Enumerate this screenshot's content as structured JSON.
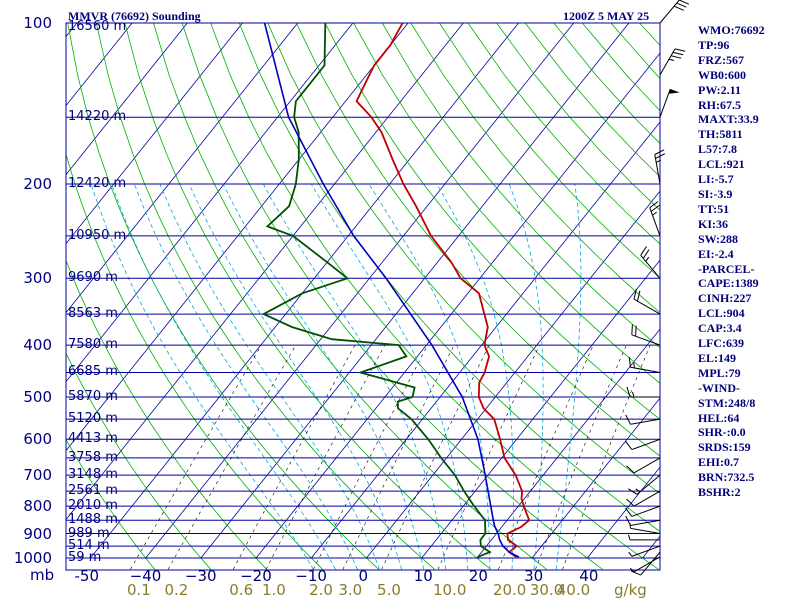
{
  "header": {
    "title": "MMVR (76692) Sounding",
    "timestamp": "1200Z  5 MAY 25"
  },
  "indices": [
    "WMO:76692",
    "TP:96",
    "FRZ:567",
    "WB0:600",
    "PW:2.11",
    "RH:67.5",
    "MAXT:33.9",
    "TH:5811",
    "L57:7.8",
    "LCL:921",
    "LI:-5.7",
    "SI:-3.9",
    "TT:51",
    "KI:36",
    "SW:288",
    "EI:-2.4",
    "-PARCEL-",
    "CAPE:1389",
    "CINH:227",
    "LCL:904",
    "CAP:3.4",
    "LFC:639",
    "EL:149",
    "MPL:79",
    "-WIND-",
    "STM:248/8",
    "HEL:64",
    "SHR-:0.0",
    "SRDS:159",
    "EHI:0.7",
    "BRN:732.5",
    "BSHR:2"
  ],
  "colors": {
    "isobar": "#0000a0",
    "isotherm": "#0000a0",
    "dry_adiabat": "#00b000",
    "moist_adiabat": "#00a8d8",
    "mixing_ratio": "#000000",
    "temperature": "#c00000",
    "dewpoint": "#005000",
    "parcel": "#0000c0",
    "wind_barb": "#000000"
  },
  "chart_data": {
    "type": "skew-t",
    "pressure_unit_label": "mb",
    "mixing_ratio_unit_label": "g/kg",
    "pressure_levels": [
      {
        "p": 100,
        "label": "100",
        "height": "16560 m"
      },
      {
        "p": 150,
        "label": "",
        "height": "14220 m"
      },
      {
        "p": 200,
        "label": "200",
        "height": "12420 m"
      },
      {
        "p": 250,
        "label": "",
        "height": "10950 m"
      },
      {
        "p": 300,
        "label": "300",
        "height": "9690 m"
      },
      {
        "p": 350,
        "label": "",
        "height": "8563 m"
      },
      {
        "p": 400,
        "label": "400",
        "height": "7580 m"
      },
      {
        "p": 450,
        "label": "",
        "height": "6685 m"
      },
      {
        "p": 500,
        "label": "500",
        "height": "5870 m"
      },
      {
        "p": 550,
        "label": "",
        "height": "5120 m"
      },
      {
        "p": 600,
        "label": "600",
        "height": "4413 m"
      },
      {
        "p": 650,
        "label": "",
        "height": "3758 m"
      },
      {
        "p": 700,
        "label": "700",
        "height": "3148 m"
      },
      {
        "p": 750,
        "label": "",
        "height": "2561 m"
      },
      {
        "p": 800,
        "label": "800",
        "height": "2010 m"
      },
      {
        "p": 850,
        "label": "",
        "height": "1488 m"
      },
      {
        "p": 900,
        "label": "900",
        "height": "989 m"
      },
      {
        "p": 950,
        "label": "",
        "height": "514 m"
      },
      {
        "p": 1000,
        "label": "1000",
        "height": "59 m"
      }
    ],
    "temperature_ticks": [
      -50,
      -40,
      -30,
      -20,
      -10,
      0,
      10,
      20,
      30,
      40
    ],
    "temperature_tick_labels": [
      "-50",
      "−40",
      "−30",
      "−20",
      "−10",
      "0",
      "10",
      "20",
      "30",
      "40"
    ],
    "mixing_ratio_ticks": [
      0.1,
      0.2,
      0.6,
      1.0,
      2.0,
      3.0,
      5.0,
      10.0,
      20.0,
      30.0,
      40.0
    ],
    "mixing_ratio_tick_labels": [
      "0.1",
      "0.2",
      "0.6",
      "1.0",
      "2.0",
      "3.0",
      "5.0",
      "10.0",
      "20.0",
      "30.0",
      "40.0"
    ],
    "series": [
      {
        "key": "temperature",
        "points": [
          [
            996,
            27
          ],
          [
            975,
            25
          ],
          [
            950,
            25.5
          ],
          [
            925,
            23
          ],
          [
            900,
            22
          ],
          [
            875,
            23.5
          ],
          [
            850,
            24
          ],
          [
            825,
            22.5
          ],
          [
            800,
            21
          ],
          [
            775,
            19.5
          ],
          [
            750,
            18.5
          ],
          [
            700,
            15
          ],
          [
            650,
            10.5
          ],
          [
            600,
            7
          ],
          [
            550,
            3
          ],
          [
            525,
            -0.5
          ],
          [
            500,
            -3
          ],
          [
            470,
            -5
          ],
          [
            450,
            -5.5
          ],
          [
            420,
            -7
          ],
          [
            400,
            -9.5
          ],
          [
            370,
            -11.5
          ],
          [
            350,
            -14
          ],
          [
            320,
            -18
          ],
          [
            300,
            -23.5
          ],
          [
            280,
            -27.5
          ],
          [
            250,
            -35
          ],
          [
            220,
            -42
          ],
          [
            200,
            -47.5
          ],
          [
            180,
            -53
          ],
          [
            160,
            -59
          ],
          [
            150,
            -63
          ],
          [
            140,
            -68
          ],
          [
            130,
            -69
          ],
          [
            120,
            -70
          ],
          [
            110,
            -70
          ],
          [
            100,
            -71
          ]
        ]
      },
      {
        "key": "dewpoint",
        "points": [
          [
            996,
            20
          ],
          [
            975,
            21.5
          ],
          [
            950,
            19
          ],
          [
            925,
            18
          ],
          [
            900,
            18
          ],
          [
            875,
            17
          ],
          [
            850,
            16
          ],
          [
            800,
            12
          ],
          [
            750,
            8
          ],
          [
            700,
            4
          ],
          [
            650,
            -1
          ],
          [
            600,
            -6
          ],
          [
            550,
            -12
          ],
          [
            525,
            -16
          ],
          [
            510,
            -17
          ],
          [
            500,
            -15
          ],
          [
            480,
            -16
          ],
          [
            450,
            -28
          ],
          [
            420,
            -22
          ],
          [
            400,
            -25
          ],
          [
            390,
            -38
          ],
          [
            370,
            -47
          ],
          [
            350,
            -54
          ],
          [
            320,
            -50
          ],
          [
            300,
            -44
          ],
          [
            280,
            -50
          ],
          [
            250,
            -60
          ],
          [
            240,
            -66
          ],
          [
            220,
            -65
          ],
          [
            200,
            -67
          ],
          [
            180,
            -70
          ],
          [
            160,
            -74
          ],
          [
            150,
            -77
          ],
          [
            140,
            -79
          ],
          [
            120,
            -79
          ],
          [
            100,
            -85
          ]
        ]
      },
      {
        "key": "parcel",
        "points": [
          [
            996,
            27.5
          ],
          [
            975,
            25
          ],
          [
            950,
            23
          ],
          [
            925,
            21.5
          ],
          [
            904,
            20.5
          ],
          [
            870,
            18.5
          ],
          [
            850,
            17.5
          ],
          [
            800,
            15
          ],
          [
            700,
            9.5
          ],
          [
            600,
            3
          ],
          [
            500,
            -6
          ],
          [
            400,
            -19
          ],
          [
            300,
            -37
          ],
          [
            250,
            -49
          ],
          [
            200,
            -62
          ],
          [
            150,
            -78
          ],
          [
            100,
            -96
          ]
        ]
      }
    ],
    "wind_barbs": [
      {
        "p": 995,
        "dir": 240,
        "spd": 5
      },
      {
        "p": 975,
        "dir": 220,
        "spd": 10
      },
      {
        "p": 950,
        "dir": 250,
        "spd": 5
      },
      {
        "p": 925,
        "dir": 270,
        "spd": 5
      },
      {
        "p": 900,
        "dir": 280,
        "spd": 5
      },
      {
        "p": 850,
        "dir": 260,
        "spd": 10
      },
      {
        "p": 800,
        "dir": 250,
        "spd": 10
      },
      {
        "p": 750,
        "dir": 240,
        "spd": 10
      },
      {
        "p": 700,
        "dir": 230,
        "spd": 15
      },
      {
        "p": 650,
        "dir": 240,
        "spd": 10
      },
      {
        "p": 600,
        "dir": 250,
        "spd": 10
      },
      {
        "p": 550,
        "dir": 260,
        "spd": 10
      },
      {
        "p": 500,
        "dir": 270,
        "spd": 15
      },
      {
        "p": 450,
        "dir": 280,
        "spd": 15
      },
      {
        "p": 400,
        "dir": 290,
        "spd": 20
      },
      {
        "p": 350,
        "dir": 300,
        "spd": 20
      },
      {
        "p": 300,
        "dir": 320,
        "spd": 25
      },
      {
        "p": 250,
        "dir": 340,
        "spd": 25
      },
      {
        "p": 200,
        "dir": 350,
        "spd": 25
      },
      {
        "p": 150,
        "dir": 20,
        "spd": 50
      },
      {
        "p": 125,
        "dir": 30,
        "spd": 35
      },
      {
        "p": 100,
        "dir": 40,
        "spd": 30
      }
    ]
  }
}
